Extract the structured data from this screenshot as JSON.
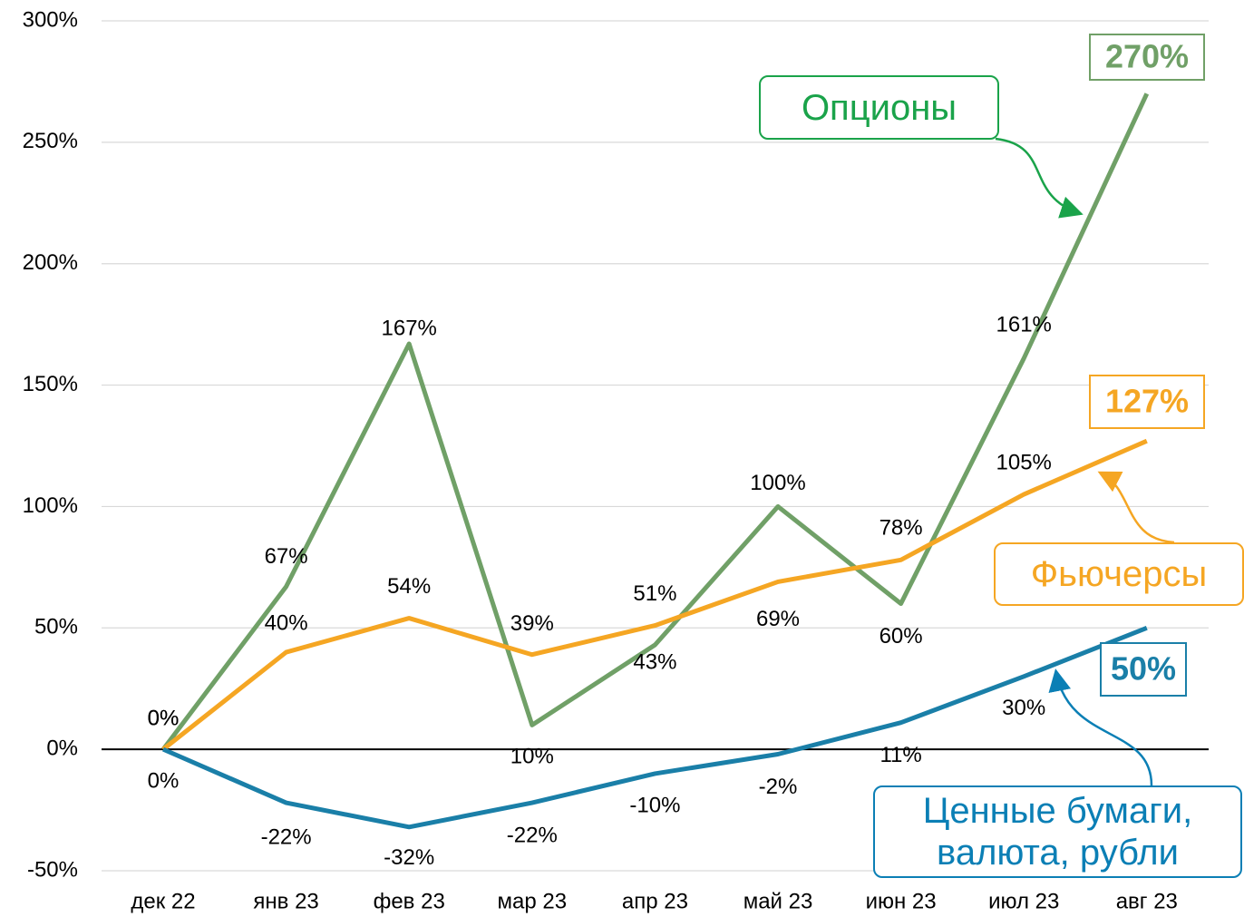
{
  "chart_data": {
    "type": "line",
    "categories": [
      "дек 22",
      "янв 23",
      "фев 23",
      "мар 23",
      "апр 23",
      "май 23",
      "июн 23",
      "июл 23",
      "авг 23"
    ],
    "ylim": [
      -50,
      300
    ],
    "yticks": [
      {
        "value": -50,
        "label": "-50%"
      },
      {
        "value": 0,
        "label": "0%"
      },
      {
        "value": 50,
        "label": "50%"
      },
      {
        "value": 100,
        "label": "100%"
      },
      {
        "value": 150,
        "label": "150%"
      },
      {
        "value": 200,
        "label": "200%"
      },
      {
        "value": 250,
        "label": "250%"
      },
      {
        "value": 300,
        "label": "300%"
      }
    ],
    "grid": true,
    "series": [
      {
        "name": "Опционы",
        "color": "#70a067",
        "values": [
          0,
          67,
          167,
          10,
          43,
          100,
          60,
          161,
          270
        ],
        "value_labels": [
          "0%",
          "67%",
          "167%",
          "10%",
          "43%",
          "100%",
          "60%",
          "161%",
          "270%"
        ]
      },
      {
        "name": "Фьючерсы",
        "color": "#f5a623",
        "values": [
          0,
          40,
          54,
          39,
          51,
          69,
          78,
          105,
          127
        ],
        "value_labels": [
          "0%",
          "40%",
          "54%",
          "39%",
          "51%",
          "69%",
          "78%",
          "105%",
          "127%"
        ]
      },
      {
        "name": "Ценные бумаги, валюта, рубли",
        "color": "#1a7fa8",
        "values": [
          0,
          -22,
          -32,
          -22,
          -10,
          -2,
          11,
          30,
          50
        ],
        "value_labels": [
          "0%",
          "-22%",
          "-32%",
          "-22%",
          "-10%",
          "-2%",
          "11%",
          "30%",
          "50%"
        ]
      }
    ]
  }
}
